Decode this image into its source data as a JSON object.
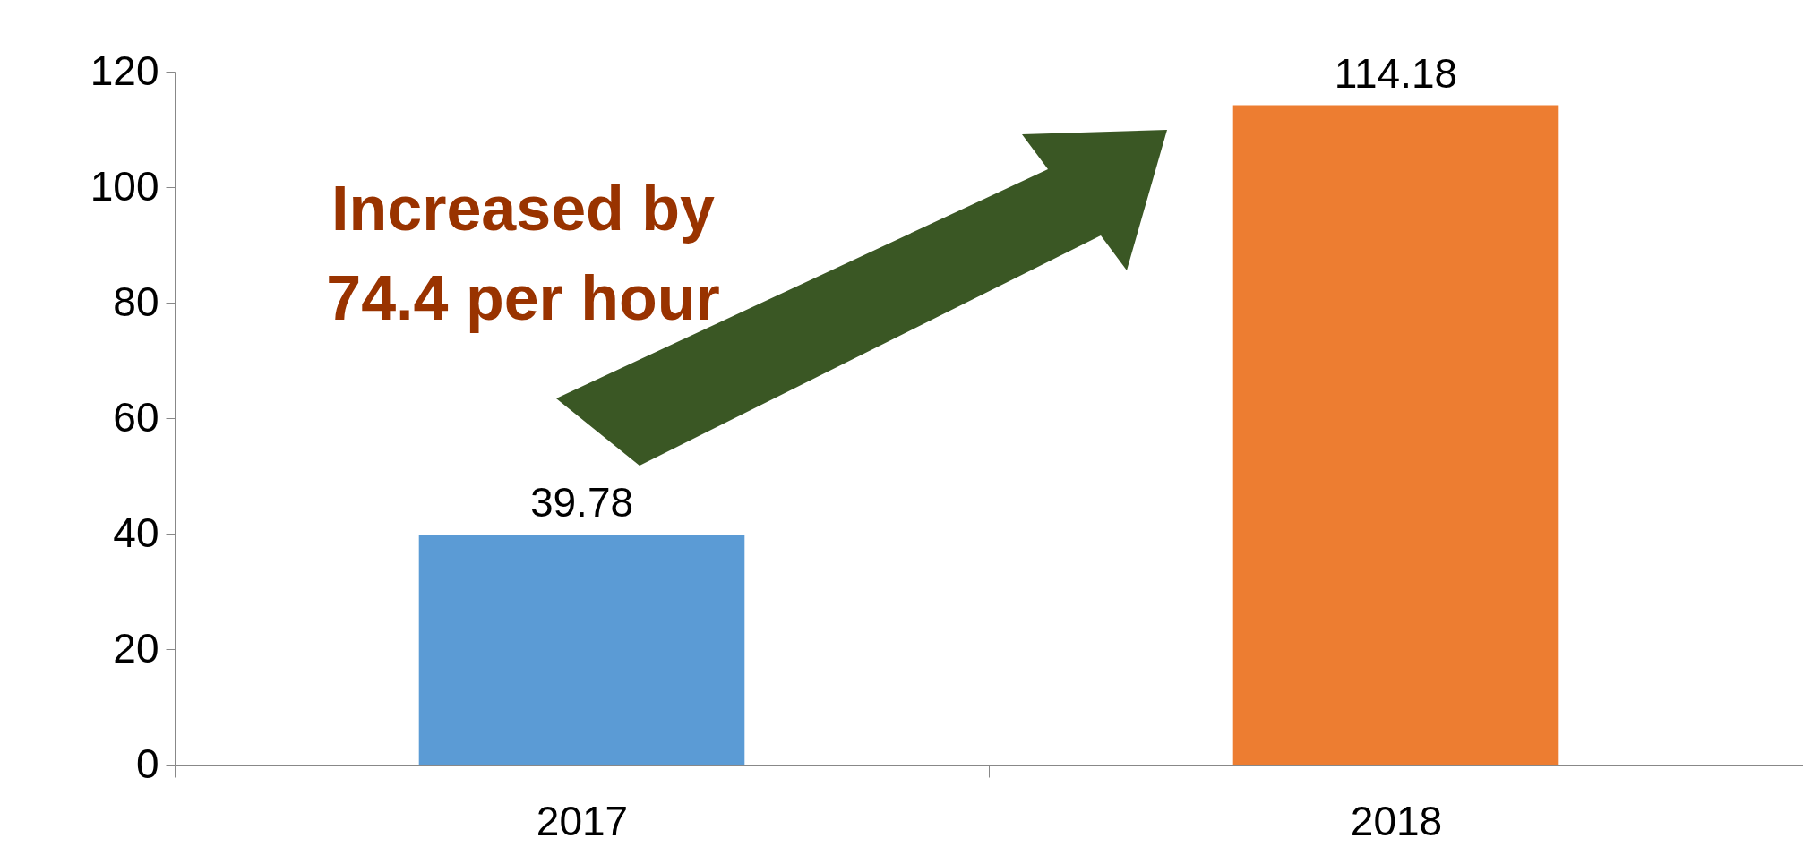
{
  "chart_data": {
    "type": "bar",
    "categories": [
      "2017",
      "2018"
    ],
    "values": [
      39.78,
      114.18
    ],
    "colors": [
      "#5b9bd5",
      "#ed7d31"
    ],
    "ylim": [
      0,
      120
    ],
    "yticks": [
      0,
      20,
      40,
      60,
      80,
      100,
      120
    ],
    "grid": false,
    "data_labels": true,
    "annotations": [
      "Increased by\n74.4 per hour"
    ]
  }
}
